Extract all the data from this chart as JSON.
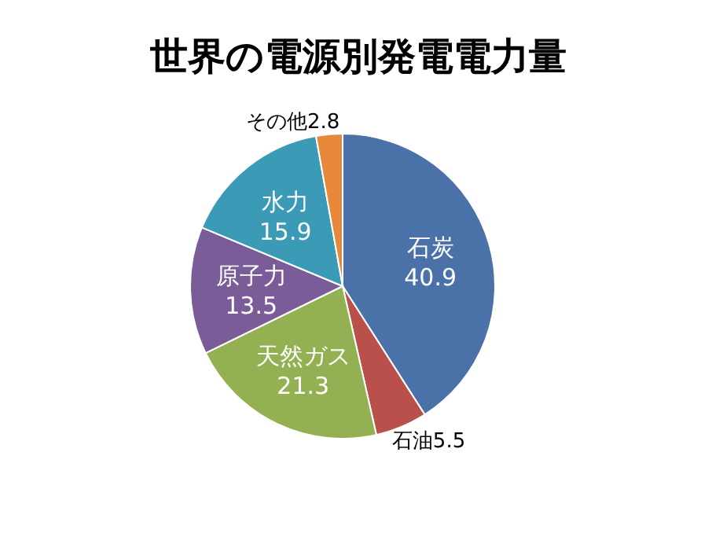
{
  "chart_data": {
    "type": "pie",
    "title": "世界の電源別発電電力量",
    "categories": [
      "石炭",
      "石油",
      "天然ガス",
      "原子力",
      "水力",
      "その他"
    ],
    "values": [
      40.9,
      5.5,
      21.3,
      13.5,
      15.9,
      2.8
    ],
    "colors": [
      "#4a72a8",
      "#b9504c",
      "#93b052",
      "#7a5c99",
      "#3b9ab5",
      "#e8883a"
    ],
    "data_labels": true
  }
}
